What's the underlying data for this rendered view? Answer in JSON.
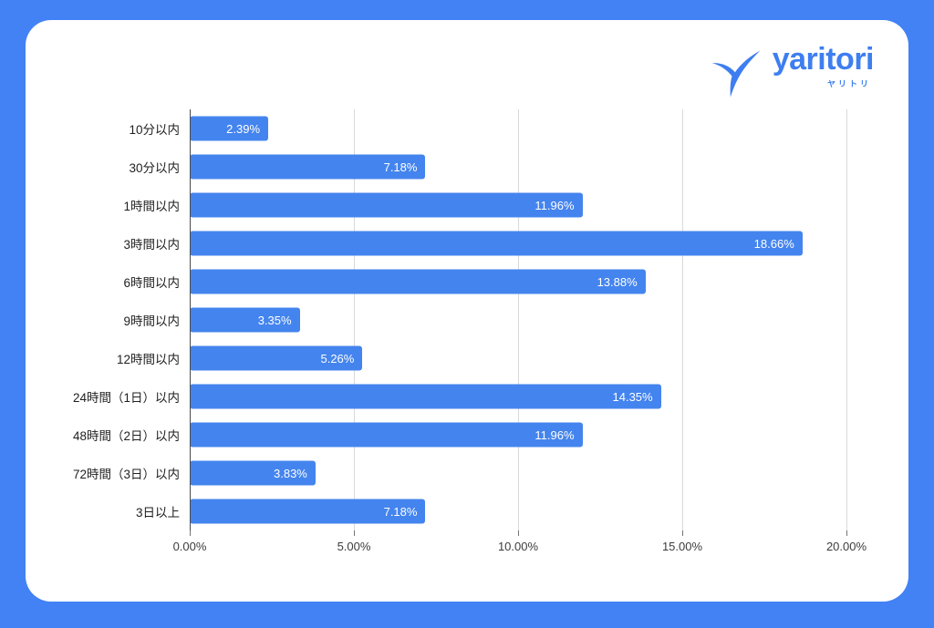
{
  "frame": {
    "background_color": "#4282F5",
    "card_color": "#FFFFFF"
  },
  "logo": {
    "brand": "yaritori",
    "brand_sub": "ヤリトリ",
    "color": "#3E7EF0"
  },
  "chart_data": {
    "type": "bar",
    "orientation": "horizontal",
    "title": "",
    "xlabel": "",
    "ylabel": "",
    "categories": [
      "10分以内",
      "30分以内",
      "1時間以内",
      "3時間以内",
      "6時間以内",
      "9時間以内",
      "12時間以内",
      "24時間（1日）以内",
      "48時間（2日）以内",
      "72時間（3日）以内",
      "3日以上"
    ],
    "values": [
      2.39,
      7.18,
      11.96,
      18.66,
      13.88,
      3.35,
      5.26,
      14.35,
      11.96,
      3.83,
      7.18
    ],
    "value_labels": [
      "2.39%",
      "7.18%",
      "11.96%",
      "18.66%",
      "13.88%",
      "3.35%",
      "5.26%",
      "14.35%",
      "11.96%",
      "3.83%",
      "7.18%"
    ],
    "xlim": [
      0,
      20
    ],
    "x_tick_labels": [
      "0.00%",
      "5.00%",
      "10.00%",
      "15.00%",
      "20.00%"
    ],
    "x_tick_values": [
      0,
      5,
      10,
      15,
      20
    ],
    "bar_color": "#4484EE",
    "value_label_color": "#FFFFFF",
    "grid": true,
    "legend_position": "none"
  }
}
